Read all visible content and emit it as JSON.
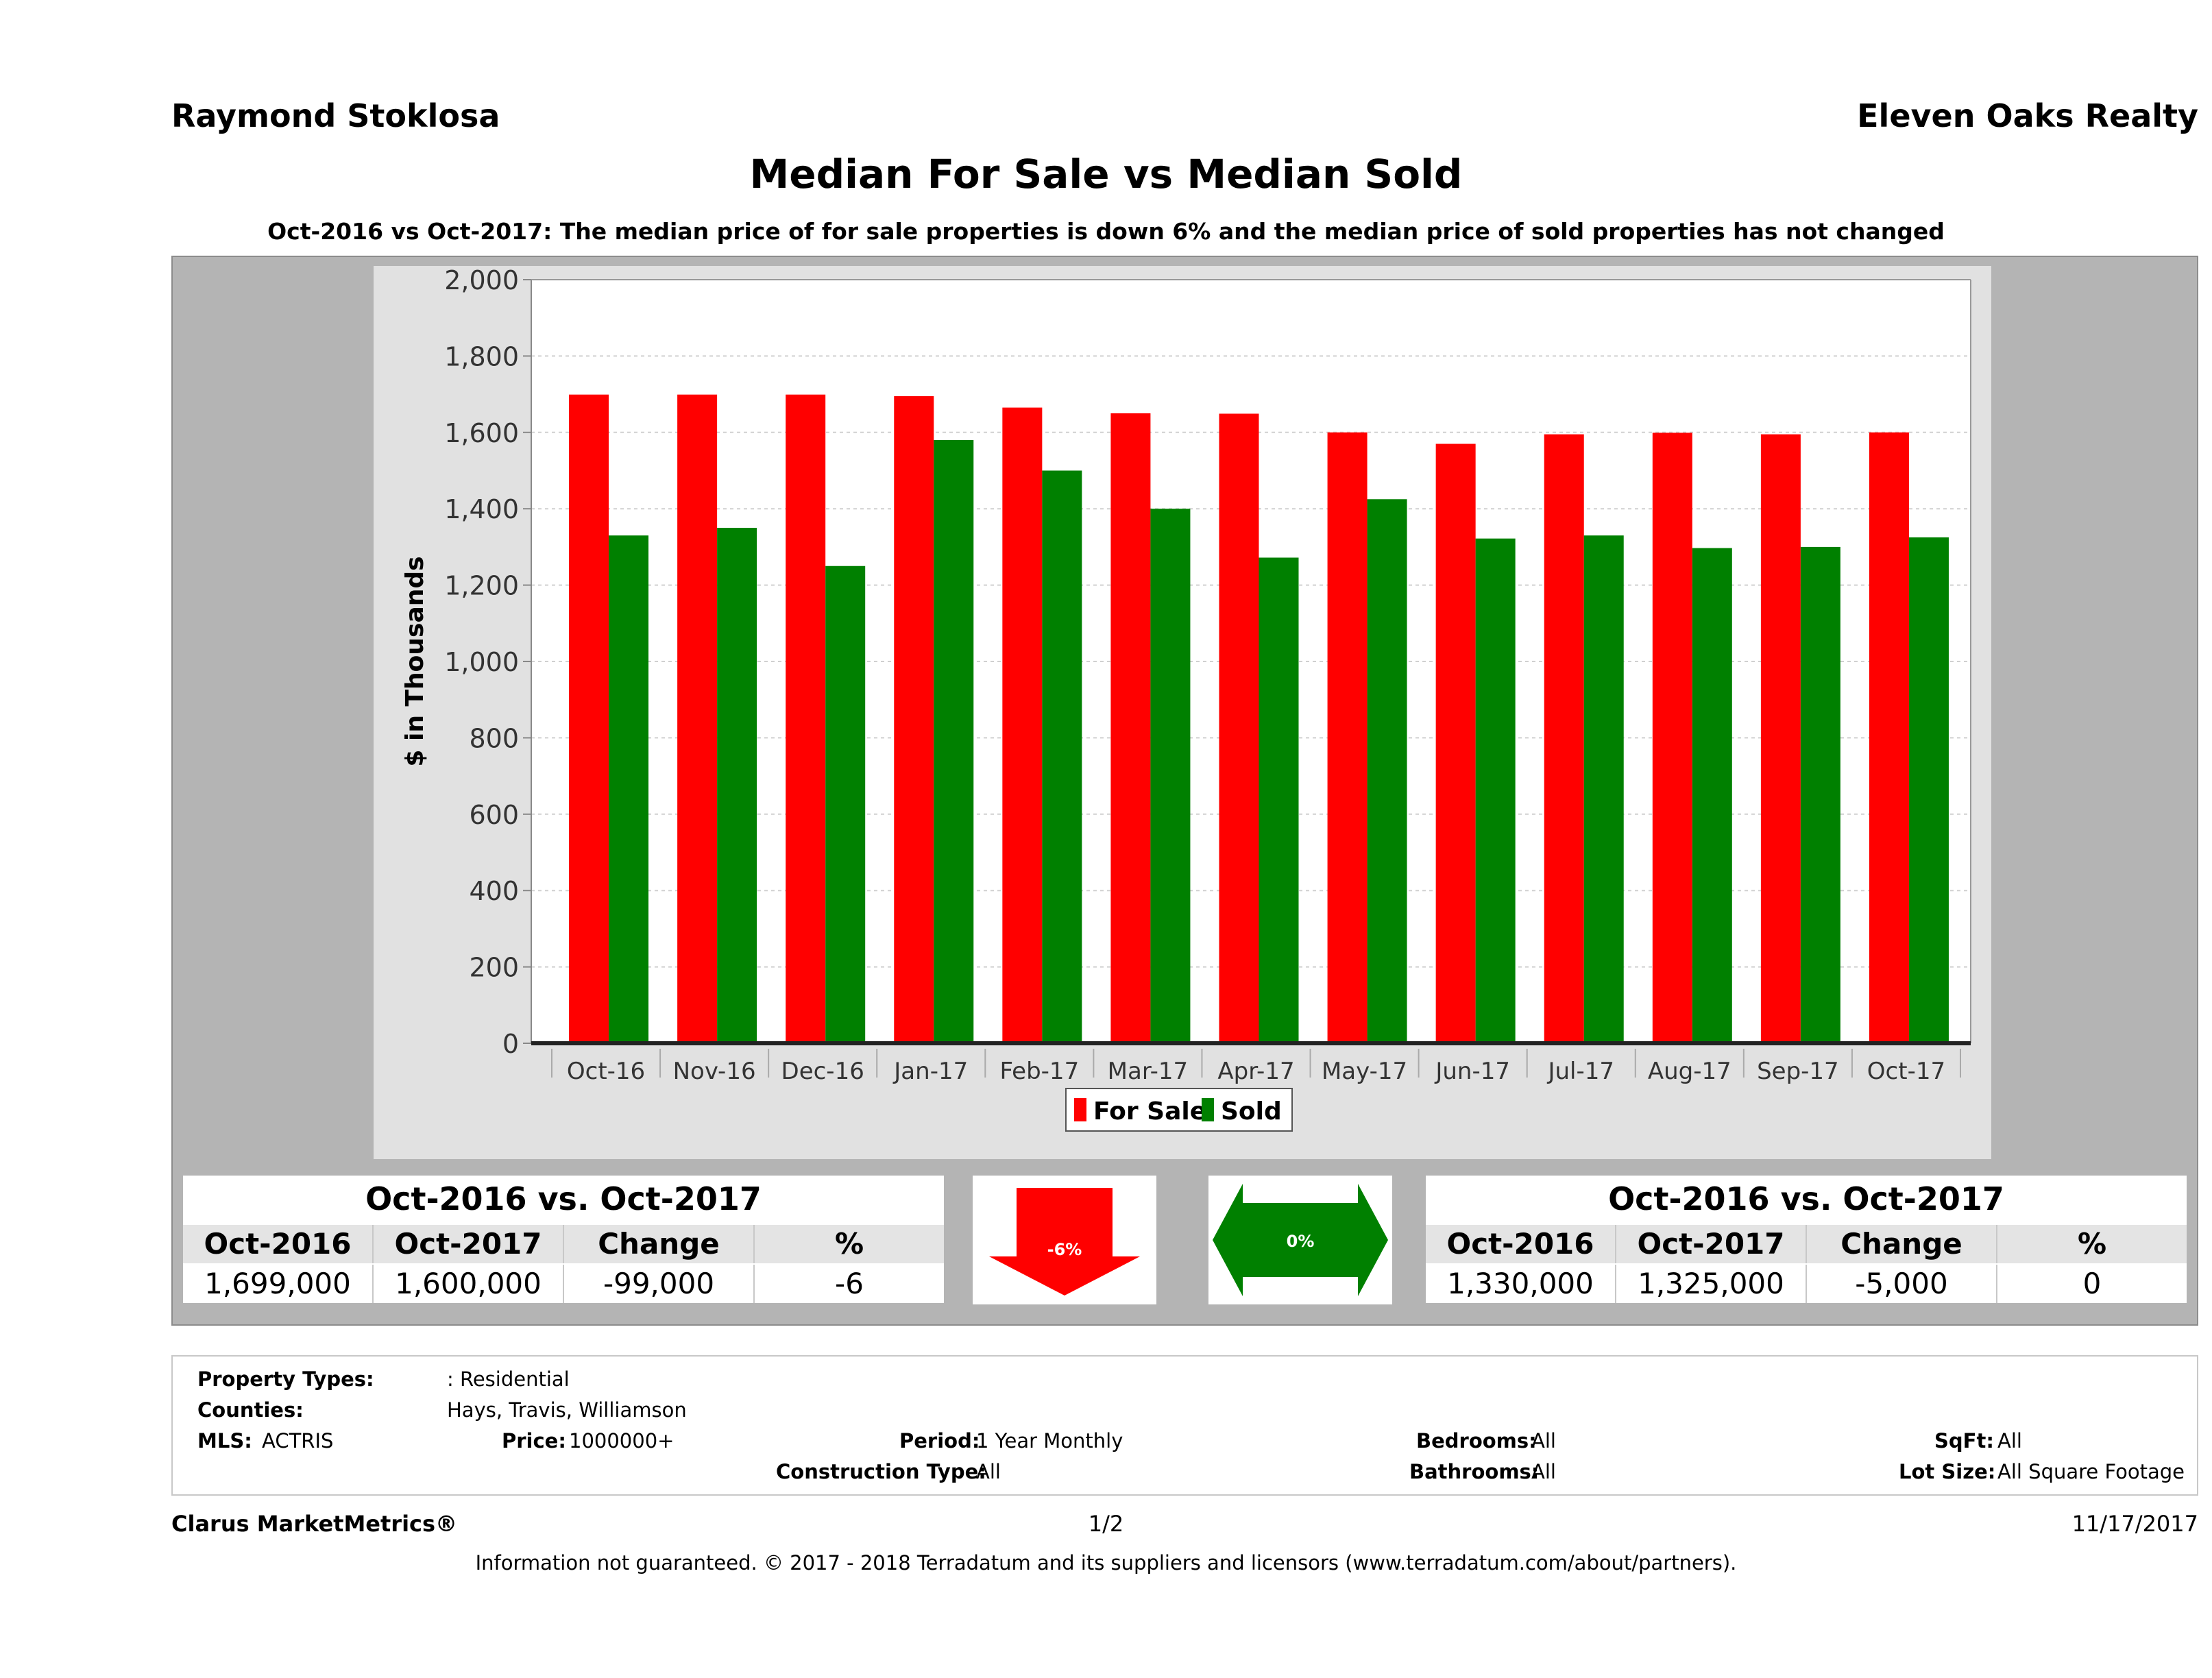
{
  "header": {
    "agent": "Raymond Stoklosa",
    "office": "Eleven Oaks Realty",
    "title": "Median For Sale vs Median Sold",
    "subtitle": "Oct-2016 vs Oct-2017: The median price of for sale properties is down 6% and the median price of sold properties has not changed"
  },
  "chart_data": {
    "type": "bar",
    "title": "",
    "xlabel": "",
    "ylabel": "$ in Thousands",
    "ylim": [
      0,
      2000
    ],
    "yticks": [
      "0",
      "200",
      "400",
      "600",
      "800",
      "1,000",
      "1,200",
      "1,400",
      "1,600",
      "1,800",
      "2,000"
    ],
    "grid": true,
    "legend_position": "bottom",
    "categories": [
      "Oct-16",
      "Nov-16",
      "Dec-16",
      "Jan-17",
      "Feb-17",
      "Mar-17",
      "Apr-17",
      "May-17",
      "Jun-17",
      "Jul-17",
      "Aug-17",
      "Sep-17",
      "Oct-17"
    ],
    "series": [
      {
        "name": "For Sale",
        "color": "#ff0000",
        "values": [
          1699,
          1699,
          1699,
          1695,
          1665,
          1650,
          1649,
          1600,
          1570,
          1595,
          1599,
          1595,
          1600
        ]
      },
      {
        "name": "Sold",
        "color": "#008000",
        "values": [
          1330,
          1350,
          1250,
          1580,
          1500,
          1400,
          1272,
          1425,
          1322,
          1330,
          1297,
          1300,
          1325
        ]
      }
    ]
  },
  "summary_left": {
    "title": "Oct-2016 vs. Oct-2017",
    "headers": [
      "Oct-2016",
      "Oct-2017",
      "Change",
      "%"
    ],
    "values": [
      "1,699,000",
      "1,600,000",
      "-99,000",
      "-6"
    ]
  },
  "summary_right": {
    "title": "Oct-2016 vs. Oct-2017",
    "headers": [
      "Oct-2016",
      "Oct-2017",
      "Change",
      "%"
    ],
    "values": [
      "1,330,000",
      "1,325,000",
      "-5,000",
      "0"
    ]
  },
  "indicators": {
    "for_sale_label": "-6%",
    "for_sale_color": "#ff0000",
    "sold_label": "0%",
    "sold_color": "#008000"
  },
  "filters": {
    "property_types_label": "Property Types:",
    "property_types_value": ": Residential",
    "counties_label": "Counties:",
    "counties_value": "Hays, Travis, Williamson",
    "mls_label": "MLS:",
    "mls_value": "ACTRIS",
    "price_label": "Price:",
    "price_value": "1000000+",
    "period_label": "Period:",
    "period_value": "1 Year Monthly",
    "construction_label": "Construction Type:",
    "construction_value": "All",
    "bedrooms_label": "Bedrooms:",
    "bedrooms_value": "All",
    "bathrooms_label": "Bathrooms:",
    "bathrooms_value": "All",
    "sqft_label": "SqFt:",
    "sqft_value": "All",
    "lot_label": "Lot Size:",
    "lot_value": "All Square Footage"
  },
  "footer": {
    "brand": "Clarus MarketMetrics®",
    "page": "1/2",
    "date": "11/17/2017",
    "disclaimer": "Information not guaranteed. © 2017 - 2018 Terradatum and its suppliers and licensors (www.terradatum.com/about/partners)."
  }
}
